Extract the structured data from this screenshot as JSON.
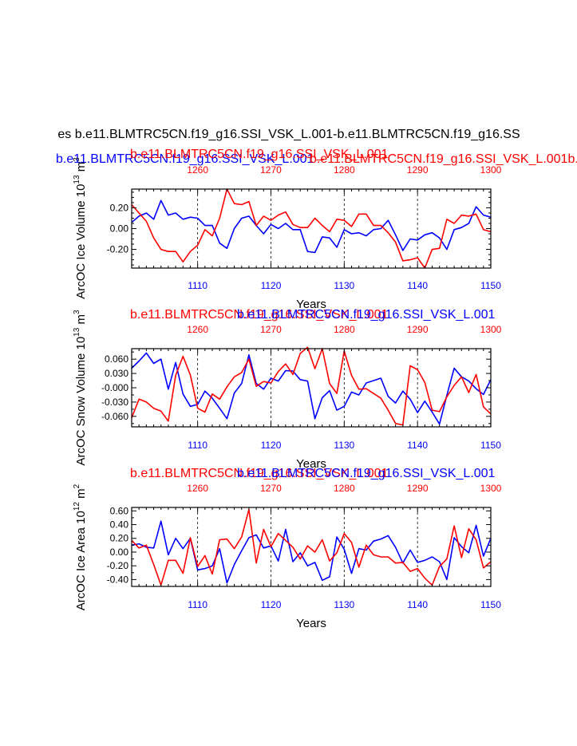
{
  "page": {
    "main_title": "es b.e11.BLMTRC5CN.f19_g16.SSI_VSK_L.001-b.e11.BLMTRC5CN.f19_g16.SS",
    "top_blue_title": "b.e11.BLMTRC5CN.f19_g16.SSI_VSK_L.001",
    "top_red_title": "b.e11.BLMTRC5CN.f19_g16.SSI_VSK_L.001b.e11.BLMTRC5CN.f19_g16.SSI_VSK_L"
  },
  "colors": {
    "blue": "#0000ff",
    "red": "#ff0000",
    "axis": "#000000"
  },
  "chart_data": [
    {
      "type": "line",
      "id": "ice-volume",
      "red_title": "b.e11.BLMTRC5CN.f19_g16.SSI_VSK_L.001",
      "blue_title": "",
      "ylabel": "ArcOC Ice Volume 10",
      "ylabel_exp": "13",
      "ylabel_unit": "m",
      "ylabel_unit_exp": "3",
      "xlabel": "Years",
      "ylim": [
        -0.38,
        0.38
      ],
      "yticks": [
        -0.2,
        0.0,
        0.2
      ],
      "ytick_labels": [
        "-0.20",
        "0.00",
        "0.20"
      ],
      "yminor": [
        -0.35,
        -0.3,
        -0.25,
        -0.15,
        -0.1,
        -0.05,
        0.05,
        0.1,
        0.15,
        0.25,
        0.3,
        0.35
      ],
      "x_bottom_range": [
        1101,
        1150
      ],
      "x_bottom_ticks": [
        1110,
        1120,
        1130,
        1140,
        1150
      ],
      "x_bottom_labels": [
        "1110",
        "1120",
        "1130",
        "1140",
        "1150"
      ],
      "x_top_range": [
        1251,
        1300
      ],
      "x_top_ticks": [
        1260,
        1270,
        1280,
        1290,
        1300
      ],
      "x_top_labels": [
        "1260",
        "1270",
        "1280",
        "1290",
        "1300"
      ],
      "series": [
        {
          "name": "blue",
          "axis": "bottom",
          "color": "#0000ff",
          "values": [
            0.06,
            0.12,
            0.15,
            0.09,
            0.27,
            0.13,
            0.15,
            0.09,
            0.11,
            0.1,
            0.03,
            0.03,
            -0.14,
            -0.19,
            0.0,
            0.1,
            0.12,
            0.03,
            -0.05,
            0.04,
            0.0,
            0.05,
            -0.01,
            -0.01,
            -0.22,
            -0.23,
            -0.08,
            -0.09,
            -0.18,
            -0.01,
            -0.05,
            -0.04,
            -0.07,
            -0.01,
            0.0,
            0.08,
            -0.06,
            -0.21,
            -0.1,
            -0.11,
            -0.06,
            -0.04,
            -0.09,
            -0.2,
            -0.01,
            0.01,
            0.05,
            0.21,
            0.13,
            0.11
          ]
        },
        {
          "name": "red",
          "axis": "top",
          "color": "#ff0000",
          "values": [
            0.23,
            0.15,
            0.07,
            -0.09,
            -0.2,
            -0.22,
            -0.22,
            -0.32,
            -0.22,
            -0.16,
            -0.01,
            -0.07,
            0.1,
            0.38,
            0.24,
            0.23,
            0.26,
            0.03,
            0.12,
            0.08,
            0.13,
            0.16,
            0.04,
            0.01,
            0.01,
            0.1,
            0.03,
            -0.03,
            0.09,
            0.08,
            0.02,
            0.14,
            0.14,
            0.03,
            0.03,
            -0.04,
            -0.13,
            -0.31,
            -0.3,
            -0.28,
            -0.38,
            -0.2,
            -0.19,
            0.09,
            0.05,
            0.13,
            0.12,
            0.14,
            -0.01,
            -0.03
          ]
        }
      ]
    },
    {
      "type": "line",
      "id": "snow-volume",
      "red_title": "b.e11.BLMTRC5CN.f19_g16.SSI_VSK_L.001",
      "blue_title": "b.e11.BLMTRC5CN.f19_g16.SSI_VSK_L.001",
      "ylabel": "ArcOC Snow Volume 10",
      "ylabel_exp": "13",
      "ylabel_unit": "m",
      "ylabel_unit_exp": "3",
      "xlabel": "Years",
      "ylim": [
        -0.082,
        0.082
      ],
      "yticks": [
        -0.06,
        -0.03,
        0.0,
        0.03,
        0.06
      ],
      "ytick_labels": [
        "-0.060",
        "-0.030",
        "-0.000",
        "0.030",
        "0.060"
      ],
      "yminor": [
        -0.075,
        -0.045,
        -0.015,
        0.015,
        0.045,
        0.075
      ],
      "x_bottom_range": [
        1101,
        1150
      ],
      "x_bottom_ticks": [
        1110,
        1120,
        1130,
        1140,
        1150
      ],
      "x_bottom_labels": [
        "1110",
        "1120",
        "1130",
        "1140",
        "1150"
      ],
      "x_top_range": [
        1251,
        1300
      ],
      "x_top_ticks": [
        1260,
        1270,
        1280,
        1290,
        1300
      ],
      "x_top_labels": [
        "1260",
        "1270",
        "1280",
        "1290",
        "1300"
      ],
      "series": [
        {
          "name": "blue",
          "axis": "bottom",
          "color": "#0000ff",
          "values": [
            0.041,
            0.056,
            0.073,
            0.051,
            0.06,
            -0.003,
            0.053,
            -0.013,
            -0.039,
            -0.035,
            -0.007,
            -0.022,
            -0.043,
            -0.065,
            -0.011,
            0.009,
            0.069,
            0.009,
            -0.003,
            0.02,
            0.014,
            0.036,
            0.035,
            0.017,
            0.014,
            -0.065,
            -0.021,
            -0.006,
            -0.047,
            -0.039,
            -0.009,
            -0.015,
            0.01,
            0.015,
            0.02,
            -0.018,
            -0.032,
            -0.007,
            -0.024,
            -0.052,
            -0.028,
            -0.051,
            -0.076,
            -0.016,
            0.041,
            0.023,
            0.014,
            -0.002,
            -0.014,
            0.017
          ]
        },
        {
          "name": "red",
          "axis": "top",
          "color": "#ff0000",
          "values": [
            -0.063,
            -0.024,
            -0.03,
            -0.043,
            -0.049,
            -0.07,
            0.026,
            0.066,
            0.027,
            -0.043,
            -0.051,
            -0.013,
            -0.024,
            0.002,
            0.023,
            0.032,
            0.06,
            0.003,
            0.013,
            0.01,
            0.034,
            0.05,
            0.028,
            0.072,
            0.085,
            0.04,
            0.082,
            0.009,
            -0.012,
            0.077,
            0.026,
            -0.003,
            -0.002,
            -0.012,
            -0.022,
            -0.047,
            -0.075,
            -0.078,
            0.046,
            0.038,
            0.011,
            -0.047,
            -0.05,
            -0.019,
            0.005,
            0.023,
            -0.01,
            0.028,
            -0.04,
            -0.055
          ]
        }
      ]
    },
    {
      "type": "line",
      "id": "ice-area",
      "red_title": "b.e11.BLMTRC5CN.f19_g16.SSI_VSK_L.001",
      "blue_title": "b.e11.BLMTRC5CN.f19_g16.SSI_VSK_L.001",
      "ylabel": "ArcOC Ice Area 10",
      "ylabel_exp": "12",
      "ylabel_unit": "m",
      "ylabel_unit_exp": "2",
      "xlabel": "Years",
      "ylim": [
        -0.5,
        0.65
      ],
      "yticks": [
        -0.4,
        -0.2,
        0.0,
        0.2,
        0.4,
        0.6
      ],
      "ytick_labels": [
        "-0.40",
        "-0.20",
        "0.00",
        "0.20",
        "0.40",
        "0.60"
      ],
      "yminor": [
        -0.3,
        -0.1,
        0.1,
        0.3,
        0.5
      ],
      "x_bottom_range": [
        1101,
        1150
      ],
      "x_bottom_ticks": [
        1110,
        1120,
        1130,
        1140,
        1150
      ],
      "x_bottom_labels": [
        "1110",
        "1120",
        "1130",
        "1140",
        "1150"
      ],
      "x_top_range": [
        1251,
        1300
      ],
      "x_top_ticks": [
        1260,
        1270,
        1280,
        1290,
        1300
      ],
      "x_top_labels": [
        "1260",
        "1270",
        "1280",
        "1290",
        "1300"
      ],
      "series": [
        {
          "name": "blue",
          "axis": "bottom",
          "color": "#0000ff",
          "values": [
            0.1,
            0.12,
            0.07,
            0.06,
            0.45,
            -0.04,
            0.2,
            0.05,
            0.2,
            -0.26,
            -0.24,
            -0.2,
            0.05,
            -0.45,
            -0.18,
            0.02,
            0.21,
            0.25,
            0.06,
            0.09,
            -0.13,
            0.33,
            -0.14,
            -0.01,
            -0.2,
            -0.15,
            -0.41,
            -0.36,
            0.22,
            0.04,
            -0.31,
            0.05,
            0.03,
            0.16,
            0.19,
            0.24,
            0.07,
            -0.16,
            0.03,
            -0.15,
            -0.12,
            -0.07,
            -0.14,
            -0.4,
            0.21,
            0.08,
            -0.01,
            0.39,
            -0.06,
            0.2
          ]
        },
        {
          "name": "red",
          "axis": "top",
          "color": "#ff0000",
          "values": [
            0.17,
            0.06,
            0.1,
            -0.18,
            -0.48,
            -0.12,
            -0.12,
            -0.31,
            0.21,
            -0.21,
            -0.05,
            -0.32,
            0.18,
            0.19,
            0.05,
            0.22,
            0.62,
            -0.16,
            0.33,
            0.08,
            0.27,
            0.17,
            0.07,
            -0.1,
            0.09,
            0.0,
            0.18,
            -0.13,
            -0.01,
            0.27,
            0.14,
            -0.22,
            0.1,
            -0.04,
            -0.07,
            -0.07,
            -0.16,
            -0.15,
            -0.28,
            -0.24,
            -0.38,
            -0.48,
            -0.21,
            -0.1,
            0.38,
            -0.08,
            0.34,
            0.18,
            -0.23,
            -0.14
          ]
        }
      ]
    }
  ]
}
